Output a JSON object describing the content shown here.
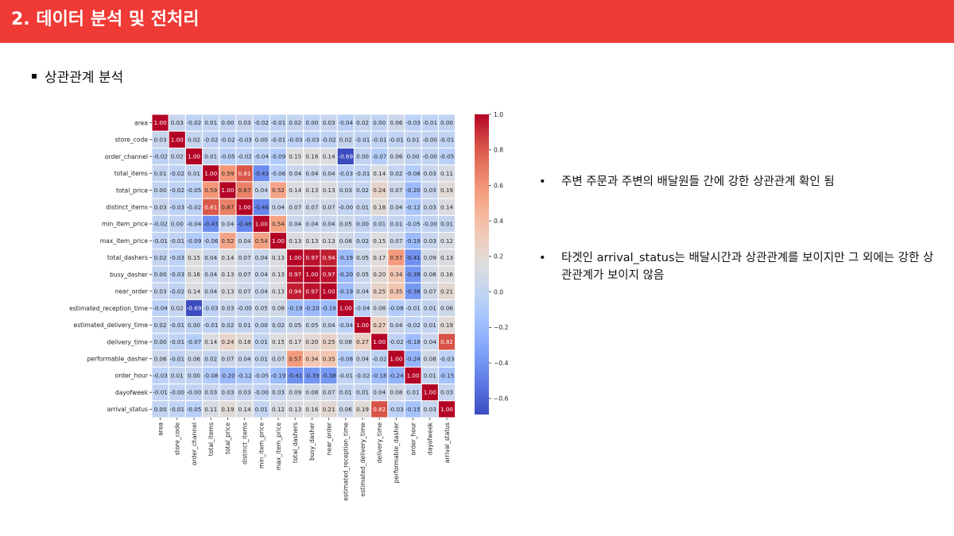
{
  "header": {
    "title": "2. 데이터 분석 및 전처리"
  },
  "section": {
    "title": "상관관계 분석"
  },
  "bullets": [
    {
      "text": "주변 주문과 주변의 배달원들 간에 강한 상관관계 확인 됨"
    },
    {
      "text": "타겟인 arrival_status는 배달시간과 상관관계를 보이지만 그 외에는 강한 상관관계가 보이지 않음"
    }
  ],
  "chart_data": {
    "type": "heatmap",
    "title": "",
    "variables": [
      "area",
      "store_code",
      "order_channel",
      "total_items",
      "total_price",
      "distinct_items",
      "min_item_price",
      "max_item_price",
      "total_dashers",
      "busy_dasher",
      "near_order",
      "estimated_reception_time",
      "estimated_delivery_time",
      "delivery_time",
      "performable_dasher",
      "order_hour",
      "dayofweek",
      "arrival_status"
    ],
    "matrix": [
      [
        1.0,
        0.03,
        -0.02,
        0.01,
        0.0,
        0.03,
        -0.02,
        -0.01,
        0.02,
        0.0,
        0.03,
        -0.04,
        0.02,
        0.0,
        0.06,
        -0.03,
        -0.01,
        0.0
      ],
      [
        0.03,
        1.0,
        0.02,
        -0.02,
        -0.02,
        -0.03,
        0.0,
        -0.01,
        -0.03,
        -0.03,
        -0.02,
        0.02,
        -0.01,
        -0.01,
        -0.01,
        0.01,
        -0.0,
        -0.01
      ],
      [
        -0.02,
        0.02,
        1.0,
        0.01,
        -0.05,
        -0.02,
        -0.04,
        -0.09,
        0.15,
        0.16,
        0.14,
        -0.69,
        0.0,
        -0.07,
        0.06,
        0.0,
        -0.0,
        -0.05
      ],
      [
        0.01,
        -0.02,
        0.01,
        1.0,
        0.59,
        0.81,
        -0.43,
        -0.06,
        0.04,
        0.04,
        0.04,
        -0.03,
        -0.01,
        0.14,
        0.02,
        -0.08,
        0.03,
        0.11
      ],
      [
        0.0,
        -0.02,
        -0.05,
        0.59,
        1.0,
        0.67,
        0.04,
        0.52,
        0.14,
        0.13,
        0.13,
        0.03,
        0.02,
        0.24,
        0.07,
        -0.2,
        0.03,
        0.19
      ],
      [
        0.03,
        -0.03,
        -0.02,
        0.81,
        0.67,
        1.0,
        -0.46,
        0.04,
        0.07,
        0.07,
        0.07,
        -0.0,
        0.01,
        0.18,
        0.04,
        -0.12,
        0.03,
        0.14
      ],
      [
        -0.02,
        0.0,
        -0.04,
        -0.43,
        0.04,
        -0.46,
        1.0,
        0.54,
        0.04,
        0.04,
        0.04,
        0.05,
        0.0,
        0.01,
        0.01,
        -0.05,
        -0.0,
        0.01
      ],
      [
        -0.01,
        -0.01,
        -0.09,
        -0.06,
        0.52,
        0.04,
        0.54,
        1.0,
        0.13,
        0.13,
        0.13,
        0.08,
        0.02,
        0.15,
        0.07,
        -0.19,
        0.03,
        0.12
      ],
      [
        0.02,
        -0.03,
        0.15,
        0.04,
        0.14,
        0.07,
        0.04,
        0.13,
        1.0,
        0.97,
        0.94,
        -0.19,
        0.05,
        0.17,
        0.57,
        -0.41,
        0.09,
        0.13
      ],
      [
        0.0,
        -0.03,
        0.16,
        0.04,
        0.13,
        0.07,
        0.04,
        0.13,
        0.97,
        1.0,
        0.97,
        -0.2,
        0.05,
        0.2,
        0.34,
        -0.39,
        0.08,
        0.16
      ],
      [
        0.03,
        -0.02,
        0.14,
        0.04,
        0.13,
        0.07,
        0.04,
        0.13,
        0.94,
        0.97,
        1.0,
        -0.19,
        0.04,
        0.25,
        0.35,
        -0.38,
        0.07,
        0.21
      ],
      [
        -0.04,
        0.02,
        -0.69,
        -0.03,
        0.03,
        -0.0,
        0.05,
        0.08,
        -0.19,
        -0.2,
        -0.19,
        1.0,
        -0.04,
        0.08,
        -0.08,
        -0.01,
        0.01,
        0.06
      ],
      [
        0.02,
        -0.01,
        0.0,
        -0.01,
        0.02,
        0.01,
        0.0,
        0.02,
        0.05,
        0.05,
        0.04,
        -0.04,
        1.0,
        0.27,
        0.04,
        -0.02,
        0.01,
        0.19
      ],
      [
        0.0,
        -0.01,
        -0.07,
        0.14,
        0.24,
        0.18,
        0.01,
        0.15,
        0.17,
        0.2,
        0.25,
        0.08,
        0.27,
        1.0,
        -0.02,
        -0.18,
        0.04,
        0.82
      ],
      [
        0.06,
        -0.01,
        0.06,
        0.02,
        0.07,
        0.04,
        0.01,
        0.07,
        0.57,
        0.34,
        0.35,
        -0.08,
        0.04,
        -0.02,
        1.0,
        -0.24,
        0.08,
        -0.03
      ],
      [
        -0.03,
        0.01,
        0.0,
        -0.08,
        -0.2,
        -0.12,
        -0.05,
        -0.19,
        -0.41,
        -0.39,
        -0.38,
        -0.01,
        -0.02,
        -0.18,
        -0.24,
        1.0,
        0.01,
        -0.15
      ],
      [
        -0.01,
        -0.0,
        -0.0,
        0.03,
        0.03,
        0.03,
        -0.0,
        0.03,
        0.09,
        0.08,
        0.07,
        0.01,
        0.01,
        0.04,
        0.08,
        0.01,
        1.0,
        0.03
      ],
      [
        0.0,
        -0.01,
        -0.05,
        0.11,
        0.19,
        0.14,
        0.01,
        0.12,
        0.13,
        0.16,
        0.21,
        0.06,
        0.19,
        0.82,
        -0.03,
        -0.15,
        0.03,
        1.0
      ]
    ],
    "vmin": -0.69,
    "vmax": 1.0,
    "colorbar_ticks": [
      1.0,
      0.8,
      0.6,
      0.4,
      0.2,
      0.0,
      -0.2,
      -0.4,
      -0.6
    ],
    "colorbar_tick_labels": [
      "1.0",
      "0.8",
      "0.6",
      "0.4",
      "0.2",
      "0.0",
      "−0.2",
      "−0.4",
      "−0.6"
    ],
    "colormap": "coolwarm",
    "annot": true
  },
  "colors": {
    "header_bg": "#ef3a35"
  }
}
